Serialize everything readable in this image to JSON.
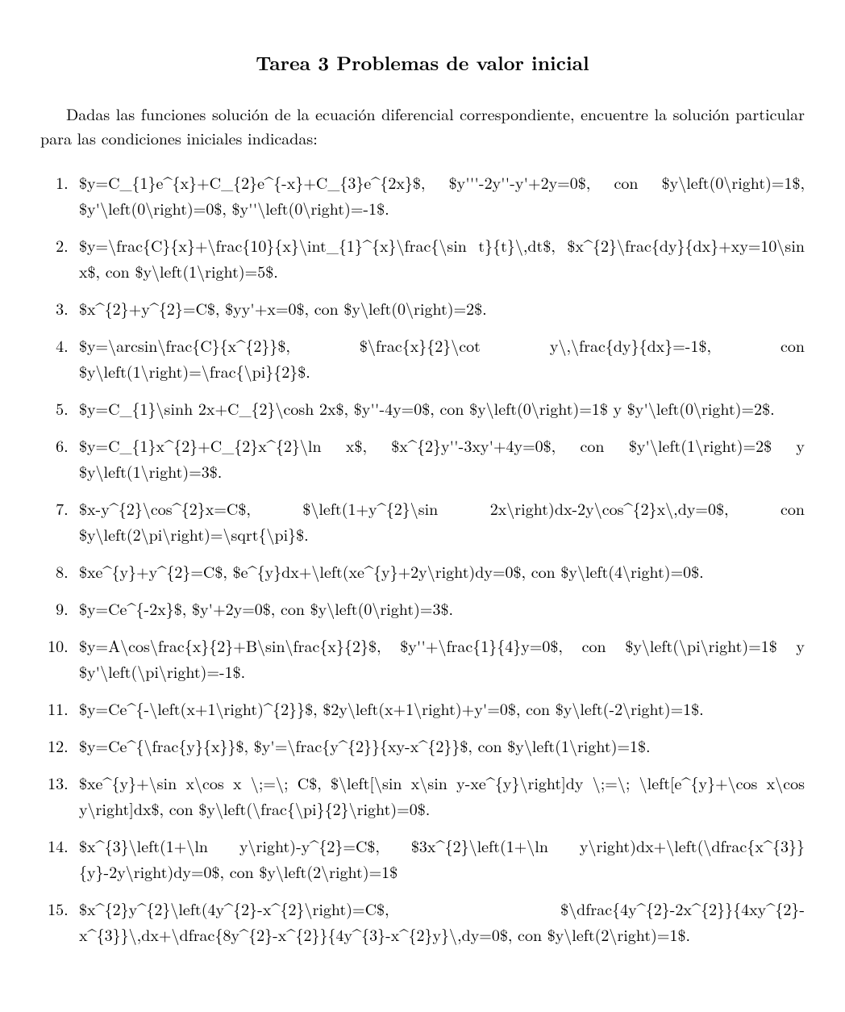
{
  "title": "Tarea 3 Problemas de valor inicial",
  "leadin": "Dadas las funciones solución de la ecuación diferencial correspondiente, encuentre la solución particular para las condiciones iniciales indicadas:",
  "items": [
    "$y=C_{1}e^{x}+C_{2}e^{-x}+C_{3}e^{2x}$, $y'''-2y''-y'+2y=0$, con $y\\left(0\\right)=1$, $y'\\left(0\\right)=0$, $y''\\left(0\\right)=-1$.",
    "$y=\\frac{C}{x}+\\frac{10}{x}\\int_{1}^{x}\\frac{\\sin t}{t}\\,dt$, $x^{2}\\frac{dy}{dx}+xy=10\\sin x$, con $y\\left(1\\right)=5$.",
    "$x^{2}+y^{2}=C$, $yy'+x=0$, con $y\\left(0\\right)=2$.",
    "$y=\\arcsin\\frac{C}{x^{2}}$, $\\frac{x}{2}\\cot y\\,\\frac{dy}{dx}=-1$, con $y\\left(1\\right)=\\frac{\\pi}{2}$.",
    "$y=C_{1}\\sinh 2x+C_{2}\\cosh 2x$, $y''-4y=0$, con $y\\left(0\\right)=1$ y $y'\\left(0\\right)=2$.",
    "$y=C_{1}x^{2}+C_{2}x^{2}\\ln x$, $x^{2}y''-3xy'+4y=0$, con $y'\\left(1\\right)=2$ y $y\\left(1\\right)=3$.",
    "$x-y^{2}\\cos^{2}x=C$, $\\left(1+y^{2}\\sin 2x\\right)dx-2y\\cos^{2}x\\,dy=0$, con $y\\left(2\\pi\\right)=\\sqrt{\\pi}$.",
    "$xe^{y}+y^{2}=C$, $e^{y}dx+\\left(xe^{y}+2y\\right)dy=0$, con $y\\left(4\\right)=0$.",
    "$y=Ce^{-2x}$, $y'+2y=0$, con $y\\left(0\\right)=3$.",
    "$y=A\\cos\\frac{x}{2}+B\\sin\\frac{x}{2}$, $y''+\\frac{1}{4}y=0$, con $y\\left(\\pi\\right)=1$ y $y'\\left(\\pi\\right)=-1$.",
    "$y=Ce^{-\\left(x+1\\right)^{2}}$, $2y\\left(x+1\\right)+y'=0$, con $y\\left(-2\\right)=1$.",
    "$y=Ce^{\\frac{y}{x}}$, $y'=\\frac{y^{2}}{xy-x^{2}}$, con $y\\left(1\\right)=1$.",
    "$xe^{y}+\\sin x\\cos x \\;=\\; C$, $\\left[\\sin x\\sin y-xe^{y}\\right]dy \\;=\\; \\left[e^{y}+\\cos x\\cos y\\right]dx$, con $y\\left(\\frac{\\pi}{2}\\right)=0$.",
    "$x^{3}\\left(1+\\ln y\\right)-y^{2}=C$, $3x^{2}\\left(1+\\ln y\\right)dx+\\left(\\dfrac{x^{3}}{y}-2y\\right)dy=0$, con $y\\left(2\\right)=1$",
    "$x^{2}y^{2}\\left(4y^{2}-x^{2}\\right)=C$, $\\dfrac{4y^{2}-2x^{2}}{4xy^{2}-x^{3}}\\,dx+\\dfrac{8y^{2}-x^{2}}{4y^{3}-x^{2}y}\\,dy=0$, con $y\\left(2\\right)=1$."
  ]
}
